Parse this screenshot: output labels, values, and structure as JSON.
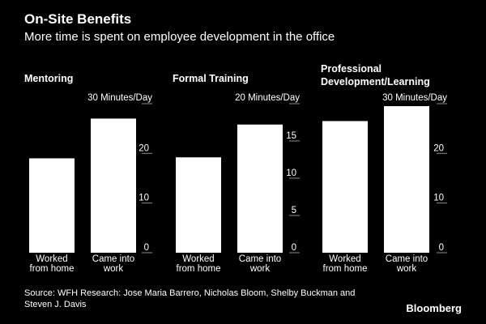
{
  "header": {
    "title": "On-Site Benefits",
    "subtitle": "More time is spent on employee development in the office"
  },
  "footer": {
    "source_line1": "Source: WFH Research: Jose Maria Barrero, Nicholas Bloom, Shelby Buckman and",
    "source_line2": "Steven J. Davis",
    "brand": "Bloomberg"
  },
  "colors": {
    "background": "#000000",
    "bar": "#ffffff",
    "text": "#ffffff",
    "tick": "#8c8c8c"
  },
  "chart_data": [
    {
      "type": "bar",
      "title": "Mentoring",
      "title_lines": [
        "Mentoring"
      ],
      "unit_label": "Minutes/Day",
      "categories": [
        [
          "Worked",
          "from home"
        ],
        [
          "Came into",
          "work"
        ]
      ],
      "values": [
        19,
        27
      ],
      "ylim": [
        0,
        30
      ],
      "yticks": [
        0,
        10,
        20,
        30
      ]
    },
    {
      "type": "bar",
      "title": "Formal Training",
      "title_lines": [
        "Formal Training"
      ],
      "unit_label": "Minutes/Day",
      "categories": [
        [
          "Worked",
          "from home"
        ],
        [
          "Came into",
          "work"
        ]
      ],
      "values": [
        12.8,
        17.2
      ],
      "ylim": [
        0,
        20
      ],
      "yticks": [
        0,
        5,
        10,
        15,
        20
      ]
    },
    {
      "type": "bar",
      "title": "Professional Development/Learning",
      "title_lines": [
        "Professional",
        "Development/Learning"
      ],
      "unit_label": "Minutes/Day",
      "categories": [
        [
          "Worked",
          "from home"
        ],
        [
          "Came into",
          "work"
        ]
      ],
      "values": [
        26.5,
        29.5
      ],
      "ylim": [
        0,
        30
      ],
      "yticks": [
        0,
        10,
        20,
        30
      ]
    }
  ]
}
